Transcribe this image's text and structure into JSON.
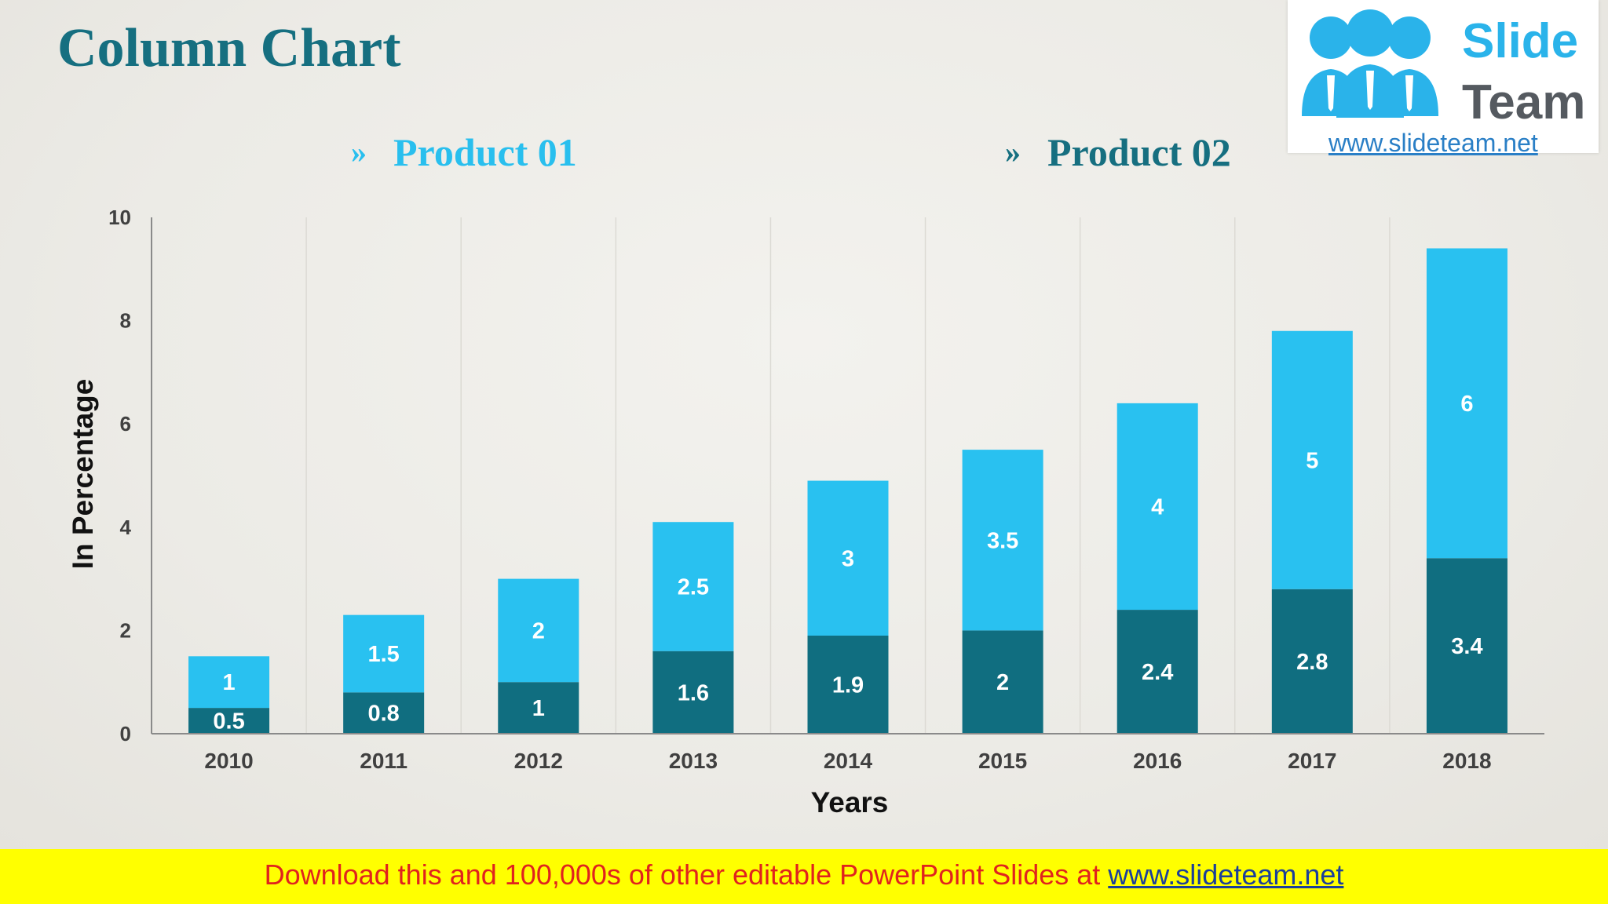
{
  "slide": {
    "title": "Column Chart"
  },
  "legend": {
    "marker": "»",
    "product1": "Product 01",
    "product2": "Product 02"
  },
  "logo": {
    "word1": "Slide",
    "word2": "Team",
    "url": "www.slideteam.net"
  },
  "footer": {
    "text": "Download this and 100,000s of other editable PowerPoint Slides at ",
    "link": "www.slideteam.net"
  },
  "colors": {
    "product1": "#29c1f0",
    "product2": "#106e80",
    "title": "#166f80"
  },
  "chart_data": {
    "type": "bar",
    "stacked": true,
    "title": "Column Chart",
    "xlabel": "Years",
    "ylabel": "In Percentage",
    "categories": [
      "2010",
      "2011",
      "2012",
      "2013",
      "2014",
      "2015",
      "2016",
      "2017",
      "2018"
    ],
    "ylim": [
      0,
      10
    ],
    "yticks": [
      0,
      2,
      4,
      6,
      8,
      10
    ],
    "grid": "vertical",
    "legend_position": "top",
    "series": [
      {
        "name": "Product 02",
        "values": [
          0.5,
          0.8,
          1,
          1.6,
          1.9,
          2,
          2.4,
          2.8,
          3.4
        ]
      },
      {
        "name": "Product 01",
        "values": [
          1,
          1.5,
          2,
          2.5,
          3,
          3.5,
          4,
          5,
          6
        ]
      }
    ]
  }
}
